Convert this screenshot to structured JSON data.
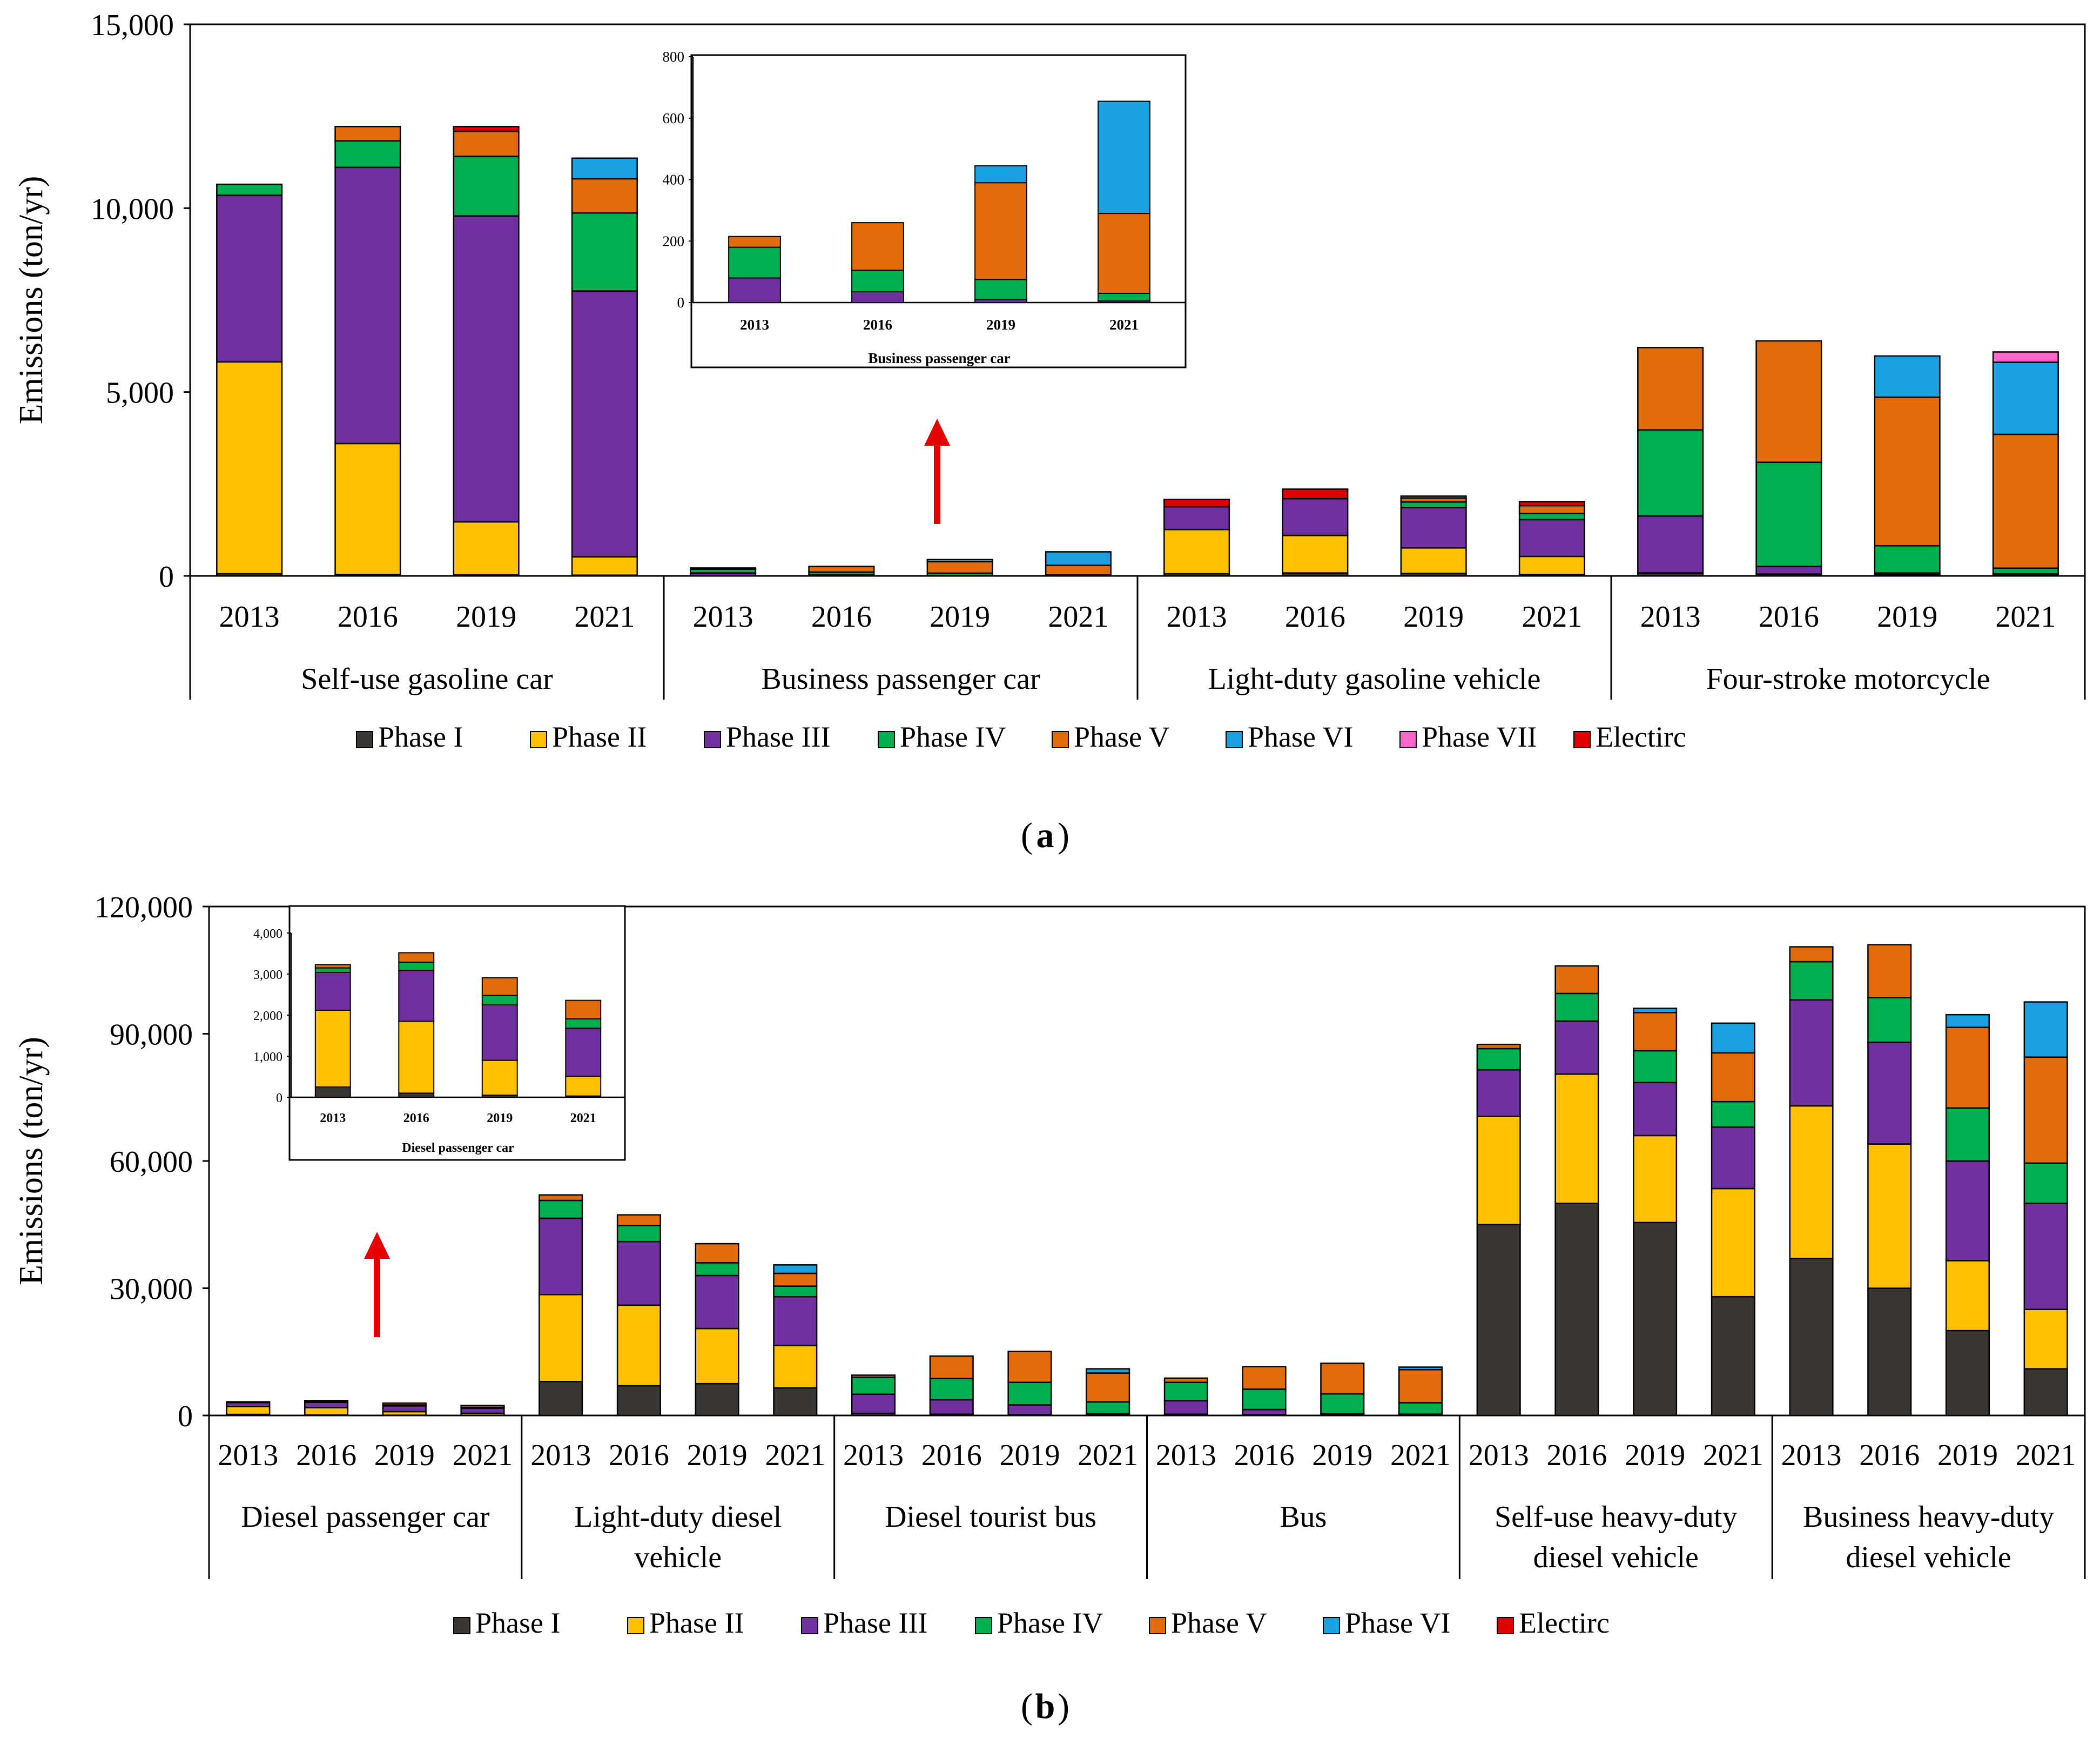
{
  "chart_data": [
    {
      "panel_label": "a",
      "type": "bar",
      "stacked": true,
      "ylabel": "Emissions (ton/yr)",
      "ylim": [
        0,
        15000
      ],
      "yticks": [
        0,
        5000,
        10000,
        15000
      ],
      "ytick_labels": [
        "0",
        "5,000",
        "10,000",
        "15,000"
      ],
      "legend_position": "bottom",
      "legend": [
        "Phase I",
        "Phase II",
        "Phase III",
        "Phase IV",
        "Phase V",
        "Phase VI",
        "Phase VII",
        "Electirc"
      ],
      "colors": [
        "#3a3634",
        "#ffc000",
        "#7030a0",
        "#00b050",
        "#e36c0a",
        "#1ba1e2",
        "#ff66cc",
        "#e00000"
      ],
      "groups": [
        {
          "label": "Self-use gasoline car",
          "years": [
            "2013",
            "2016",
            "2019",
            "2021"
          ],
          "stacks": [
            [
              60,
              5760,
              4530,
              300,
              0,
              0,
              0,
              0
            ],
            [
              40,
              3560,
              7510,
              720,
              390,
              0,
              0,
              0
            ],
            [
              30,
              1440,
              8320,
              1620,
              680,
              0,
              0,
              130
            ],
            [
              20,
              500,
              7230,
              2120,
              930,
              560,
              0,
              0
            ]
          ]
        },
        {
          "label": "Business passenger car",
          "years": [
            "2013",
            "2016",
            "2019",
            "2021"
          ],
          "stacks": [
            [
              0,
              0,
              80,
              100,
              35,
              0,
              0,
              0
            ],
            [
              0,
              0,
              35,
              70,
              155,
              0,
              0,
              0
            ],
            [
              0,
              0,
              10,
              65,
              315,
              55,
              0,
              0
            ],
            [
              0,
              0,
              5,
              25,
              260,
              365,
              0,
              0
            ]
          ]
        },
        {
          "label": "Light-duty gasoline vehicle",
          "years": [
            "2013",
            "2016",
            "2019",
            "2021"
          ],
          "stacks": [
            [
              60,
              1200,
              620,
              0,
              0,
              0,
              0,
              200
            ],
            [
              80,
              1020,
              1000,
              0,
              0,
              0,
              0,
              260
            ],
            [
              70,
              690,
              1100,
              150,
              110,
              50,
              0,
              0
            ],
            [
              40,
              490,
              1000,
              170,
              210,
              0,
              0,
              110
            ]
          ]
        },
        {
          "label": "Four-stroke motorcycle",
          "years": [
            "2013",
            "2016",
            "2019",
            "2021"
          ],
          "stacks": [
            [
              80,
              0,
              1550,
              2340,
              2240,
              0,
              0,
              0
            ],
            [
              50,
              0,
              210,
              2830,
              3300,
              0,
              0,
              0
            ],
            [
              40,
              0,
              40,
              740,
              4040,
              1120,
              0,
              0
            ],
            [
              20,
              0,
              40,
              150,
              3640,
              1960,
              280,
              0
            ]
          ]
        }
      ],
      "inset": {
        "xlabel": "Business passenger car",
        "ylim": [
          0,
          800
        ],
        "yticks": [
          0,
          200,
          400,
          600,
          800
        ],
        "ytick_labels": [
          "0",
          "200",
          "400",
          "600",
          "800"
        ],
        "categories": [
          "2013",
          "2016",
          "2019",
          "2021"
        ],
        "stacks": [
          [
            0,
            0,
            80,
            100,
            35,
            0,
            0,
            0
          ],
          [
            0,
            0,
            35,
            70,
            155,
            0,
            0,
            0
          ],
          [
            0,
            0,
            10,
            65,
            315,
            55,
            0,
            0
          ],
          [
            0,
            0,
            5,
            25,
            260,
            365,
            0,
            0
          ]
        ]
      }
    },
    {
      "panel_label": "b",
      "type": "bar",
      "stacked": true,
      "ylabel": "Emissions (ton/yr)",
      "ylim": [
        0,
        120000
      ],
      "yticks": [
        0,
        30000,
        60000,
        90000,
        120000
      ],
      "ytick_labels": [
        "0",
        "30,000",
        "60,000",
        "90,000",
        "120,000"
      ],
      "legend_position": "bottom",
      "legend": [
        "Phase I",
        "Phase II",
        "Phase III",
        "Phase IV",
        "Phase V",
        "Phase VI",
        "Electirc"
      ],
      "colors": [
        "#3a3634",
        "#ffc000",
        "#7030a0",
        "#00b050",
        "#e36c0a",
        "#1ba1e2",
        "#e00000"
      ],
      "groups": [
        {
          "label": [
            "Diesel passenger car"
          ],
          "years": [
            "2013",
            "2016",
            "2019",
            "2021"
          ],
          "stacks": [
            [
              250,
              1870,
              920,
              110,
              80,
              0,
              0
            ],
            [
              100,
              1750,
              1240,
              200,
              230,
              0,
              0
            ],
            [
              50,
              850,
              1350,
              230,
              430,
              0,
              0
            ],
            [
              30,
              480,
              1170,
              230,
              450,
              0,
              0
            ]
          ]
        },
        {
          "label": [
            "Light-duty diesel",
            "vehicle"
          ],
          "years": [
            "2013",
            "2016",
            "2019",
            "2021"
          ],
          "stacks": [
            [
              8000,
              20500,
              18000,
              4200,
              1300,
              0,
              0
            ],
            [
              7000,
              19000,
              15000,
              3800,
              2500,
              0,
              0
            ],
            [
              7500,
              13000,
              12500,
              3000,
              4500,
              0,
              0
            ],
            [
              6500,
              10000,
              11500,
              2500,
              3000,
              2000,
              0
            ]
          ]
        },
        {
          "label": [
            "Diesel tourist bus"
          ],
          "years": [
            "2013",
            "2016",
            "2019",
            "2021"
          ],
          "stacks": [
            [
              500,
              0,
              4500,
              4000,
              500,
              0,
              0
            ],
            [
              300,
              0,
              3400,
              5000,
              5300,
              0,
              0
            ],
            [
              200,
              0,
              2300,
              5300,
              7300,
              0,
              0
            ],
            [
              100,
              0,
              300,
              2800,
              6800,
              1000,
              0
            ]
          ]
        },
        {
          "label": [
            "Bus"
          ],
          "years": [
            "2013",
            "2016",
            "2019",
            "2021"
          ],
          "stacks": [
            [
              300,
              0,
              3200,
              4300,
              1000,
              0,
              0
            ],
            [
              200,
              0,
              1200,
              4800,
              5300,
              0,
              0
            ],
            [
              100,
              0,
              300,
              4700,
              7200,
              0,
              0
            ],
            [
              50,
              0,
              250,
              2700,
              7800,
              600,
              0
            ]
          ]
        },
        {
          "label": [
            "Self-use heavy-duty",
            "diesel vehicle"
          ],
          "years": [
            "2013",
            "2016",
            "2019",
            "2021"
          ],
          "stacks": [
            [
              45000,
              25500,
              11000,
              5000,
              1000,
              0,
              0
            ],
            [
              50000,
              30500,
              12500,
              6500,
              6500,
              0,
              0
            ],
            [
              45500,
              20500,
              12500,
              7500,
              9000,
              1000,
              0
            ],
            [
              28000,
              25500,
              14500,
              6000,
              11500,
              7000,
              0
            ]
          ]
        },
        {
          "label": [
            "Business heavy-duty",
            "diesel vehicle"
          ],
          "years": [
            "2013",
            "2016",
            "2019",
            "2021"
          ],
          "stacks": [
            [
              37000,
              36000,
              25000,
              9000,
              3500,
              0,
              0
            ],
            [
              30000,
              34000,
              24000,
              10500,
              12500,
              0,
              0
            ],
            [
              20000,
              16500,
              23500,
              12500,
              19000,
              3000,
              0
            ],
            [
              11000,
              14000,
              25000,
              9500,
              25000,
              13000,
              0
            ]
          ]
        }
      ],
      "inset": {
        "xlabel": "Diesel passenger car",
        "ylim": [
          0,
          4000
        ],
        "yticks": [
          0,
          1000,
          2000,
          3000,
          4000
        ],
        "ytick_labels": [
          "0",
          "1,000",
          "2,000",
          "3,000",
          "4,000"
        ],
        "categories": [
          "2013",
          "2016",
          "2019",
          "2021"
        ],
        "stacks": [
          [
            250,
            1870,
            920,
            110,
            80,
            0,
            0
          ],
          [
            100,
            1750,
            1240,
            200,
            230,
            0,
            0
          ],
          [
            50,
            850,
            1350,
            230,
            430,
            0,
            0
          ],
          [
            30,
            480,
            1170,
            230,
            450,
            0,
            0
          ]
        ]
      }
    }
  ],
  "panel_captions": [
    "a",
    "b"
  ]
}
